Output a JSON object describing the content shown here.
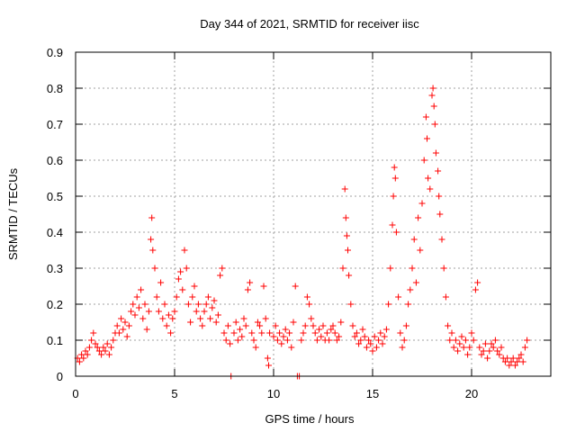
{
  "chart_data": {
    "type": "scatter",
    "title": "Day 344 of 2021, SRMTID for receiver iisc",
    "xlabel": "GPS time / hours",
    "ylabel": "SRMTID / TECUs",
    "xlim": [
      0,
      24
    ],
    "ylim": [
      0,
      0.9
    ],
    "xticks": [
      0,
      5,
      10,
      15,
      20
    ],
    "yticks": [
      0,
      0.1,
      0.2,
      0.3,
      0.4,
      0.5,
      0.6,
      0.7,
      0.8,
      0.9
    ],
    "xtick_labels": [
      "0",
      "5",
      "10",
      "15",
      "20"
    ],
    "ytick_labels": [
      "0",
      "0.1",
      "0.2",
      "0.3",
      "0.4",
      "0.5",
      "0.6",
      "0.7",
      "0.8",
      "0.9"
    ],
    "grid": true,
    "marker": "+",
    "series": [
      {
        "name": "SRMTID",
        "color": "#ff0000",
        "points": [
          [
            0.1,
            0.05
          ],
          [
            0.2,
            0.04
          ],
          [
            0.3,
            0.06
          ],
          [
            0.4,
            0.05
          ],
          [
            0.5,
            0.07
          ],
          [
            0.6,
            0.06
          ],
          [
            0.7,
            0.08
          ],
          [
            0.8,
            0.1
          ],
          [
            0.9,
            0.12
          ],
          [
            1.0,
            0.09
          ],
          [
            1.1,
            0.08
          ],
          [
            1.2,
            0.07
          ],
          [
            1.3,
            0.06
          ],
          [
            1.4,
            0.08
          ],
          [
            1.5,
            0.07
          ],
          [
            1.6,
            0.09
          ],
          [
            1.7,
            0.06
          ],
          [
            1.8,
            0.08
          ],
          [
            1.9,
            0.1
          ],
          [
            2.0,
            0.12
          ],
          [
            2.1,
            0.14
          ],
          [
            2.2,
            0.12
          ],
          [
            2.3,
            0.16
          ],
          [
            2.4,
            0.13
          ],
          [
            2.5,
            0.15
          ],
          [
            2.6,
            0.11
          ],
          [
            2.7,
            0.14
          ],
          [
            2.8,
            0.18
          ],
          [
            2.9,
            0.2
          ],
          [
            3.0,
            0.17
          ],
          [
            3.1,
            0.22
          ],
          [
            3.2,
            0.19
          ],
          [
            3.3,
            0.24
          ],
          [
            3.4,
            0.16
          ],
          [
            3.5,
            0.2
          ],
          [
            3.6,
            0.13
          ],
          [
            3.7,
            0.18
          ],
          [
            3.8,
            0.38
          ],
          [
            3.85,
            0.44
          ],
          [
            3.9,
            0.35
          ],
          [
            4.0,
            0.3
          ],
          [
            4.1,
            0.22
          ],
          [
            4.2,
            0.18
          ],
          [
            4.3,
            0.26
          ],
          [
            4.4,
            0.16
          ],
          [
            4.5,
            0.2
          ],
          [
            4.6,
            0.14
          ],
          [
            4.7,
            0.17
          ],
          [
            4.8,
            0.12
          ],
          [
            4.9,
            0.16
          ],
          [
            5.0,
            0.18
          ],
          [
            5.1,
            0.22
          ],
          [
            5.2,
            0.27
          ],
          [
            5.3,
            0.29
          ],
          [
            5.4,
            0.24
          ],
          [
            5.5,
            0.35
          ],
          [
            5.6,
            0.3
          ],
          [
            5.7,
            0.2
          ],
          [
            5.8,
            0.15
          ],
          [
            5.9,
            0.22
          ],
          [
            6.0,
            0.25
          ],
          [
            6.1,
            0.18
          ],
          [
            6.2,
            0.2
          ],
          [
            6.3,
            0.16
          ],
          [
            6.4,
            0.14
          ],
          [
            6.5,
            0.18
          ],
          [
            6.6,
            0.2
          ],
          [
            6.7,
            0.22
          ],
          [
            6.8,
            0.16
          ],
          [
            6.9,
            0.19
          ],
          [
            7.0,
            0.21
          ],
          [
            7.1,
            0.15
          ],
          [
            7.2,
            0.17
          ],
          [
            7.3,
            0.28
          ],
          [
            7.4,
            0.3
          ],
          [
            7.5,
            0.12
          ],
          [
            7.6,
            0.1
          ],
          [
            7.7,
            0.14
          ],
          [
            7.8,
            0.09
          ],
          [
            7.85,
            0.0
          ],
          [
            8.0,
            0.12
          ],
          [
            8.1,
            0.15
          ],
          [
            8.2,
            0.1
          ],
          [
            8.3,
            0.13
          ],
          [
            8.4,
            0.11
          ],
          [
            8.5,
            0.16
          ],
          [
            8.6,
            0.14
          ],
          [
            8.7,
            0.24
          ],
          [
            8.8,
            0.26
          ],
          [
            8.9,
            0.12
          ],
          [
            9.0,
            0.1
          ],
          [
            9.1,
            0.08
          ],
          [
            9.2,
            0.15
          ],
          [
            9.3,
            0.14
          ],
          [
            9.4,
            0.12
          ],
          [
            9.5,
            0.25
          ],
          [
            9.6,
            0.16
          ],
          [
            9.7,
            0.05
          ],
          [
            9.75,
            0.03
          ],
          [
            9.8,
            0.12
          ],
          [
            10.0,
            0.11
          ],
          [
            10.1,
            0.14
          ],
          [
            10.2,
            0.1
          ],
          [
            10.3,
            0.12
          ],
          [
            10.4,
            0.09
          ],
          [
            10.5,
            0.11
          ],
          [
            10.6,
            0.13
          ],
          [
            10.7,
            0.1
          ],
          [
            10.8,
            0.12
          ],
          [
            10.9,
            0.08
          ],
          [
            11.0,
            0.15
          ],
          [
            11.1,
            0.25
          ],
          [
            11.2,
            0.0
          ],
          [
            11.3,
            0.0
          ],
          [
            11.4,
            0.1
          ],
          [
            11.5,
            0.12
          ],
          [
            11.6,
            0.14
          ],
          [
            11.7,
            0.22
          ],
          [
            11.8,
            0.2
          ],
          [
            11.9,
            0.16
          ],
          [
            12.0,
            0.14
          ],
          [
            12.1,
            0.12
          ],
          [
            12.2,
            0.1
          ],
          [
            12.3,
            0.13
          ],
          [
            12.4,
            0.11
          ],
          [
            12.5,
            0.14
          ],
          [
            12.6,
            0.1
          ],
          [
            12.7,
            0.12
          ],
          [
            12.8,
            0.1
          ],
          [
            12.9,
            0.13
          ],
          [
            13.0,
            0.14
          ],
          [
            13.1,
            0.12
          ],
          [
            13.2,
            0.1
          ],
          [
            13.3,
            0.11
          ],
          [
            13.4,
            0.15
          ],
          [
            13.5,
            0.3
          ],
          [
            13.6,
            0.52
          ],
          [
            13.65,
            0.44
          ],
          [
            13.7,
            0.39
          ],
          [
            13.75,
            0.35
          ],
          [
            13.8,
            0.28
          ],
          [
            13.9,
            0.2
          ],
          [
            14.0,
            0.14
          ],
          [
            14.1,
            0.11
          ],
          [
            14.2,
            0.12
          ],
          [
            14.3,
            0.09
          ],
          [
            14.4,
            0.1
          ],
          [
            14.5,
            0.13
          ],
          [
            14.6,
            0.11
          ],
          [
            14.7,
            0.08
          ],
          [
            14.8,
            0.1
          ],
          [
            14.9,
            0.09
          ],
          [
            15.0,
            0.07
          ],
          [
            15.1,
            0.11
          ],
          [
            15.2,
            0.08
          ],
          [
            15.3,
            0.1
          ],
          [
            15.4,
            0.12
          ],
          [
            15.5,
            0.09
          ],
          [
            15.6,
            0.11
          ],
          [
            15.7,
            0.13
          ],
          [
            15.8,
            0.2
          ],
          [
            15.9,
            0.3
          ],
          [
            16.0,
            0.42
          ],
          [
            16.05,
            0.5
          ],
          [
            16.1,
            0.58
          ],
          [
            16.15,
            0.55
          ],
          [
            16.2,
            0.4
          ],
          [
            16.3,
            0.22
          ],
          [
            16.4,
            0.12
          ],
          [
            16.5,
            0.08
          ],
          [
            16.6,
            0.1
          ],
          [
            16.7,
            0.14
          ],
          [
            16.8,
            0.2
          ],
          [
            16.9,
            0.24
          ],
          [
            17.0,
            0.3
          ],
          [
            17.1,
            0.38
          ],
          [
            17.2,
            0.26
          ],
          [
            17.3,
            0.44
          ],
          [
            17.4,
            0.35
          ],
          [
            17.5,
            0.48
          ],
          [
            17.6,
            0.6
          ],
          [
            17.7,
            0.72
          ],
          [
            17.75,
            0.66
          ],
          [
            17.8,
            0.55
          ],
          [
            17.9,
            0.52
          ],
          [
            18.0,
            0.78
          ],
          [
            18.05,
            0.8
          ],
          [
            18.1,
            0.75
          ],
          [
            18.15,
            0.7
          ],
          [
            18.2,
            0.62
          ],
          [
            18.3,
            0.57
          ],
          [
            18.35,
            0.5
          ],
          [
            18.4,
            0.45
          ],
          [
            18.5,
            0.38
          ],
          [
            18.6,
            0.3
          ],
          [
            18.7,
            0.22
          ],
          [
            18.8,
            0.14
          ],
          [
            18.9,
            0.1
          ],
          [
            19.0,
            0.12
          ],
          [
            19.1,
            0.08
          ],
          [
            19.2,
            0.1
          ],
          [
            19.3,
            0.07
          ],
          [
            19.4,
            0.09
          ],
          [
            19.5,
            0.11
          ],
          [
            19.6,
            0.08
          ],
          [
            19.7,
            0.1
          ],
          [
            19.8,
            0.06
          ],
          [
            19.9,
            0.08
          ],
          [
            20.0,
            0.12
          ],
          [
            20.1,
            0.1
          ],
          [
            20.2,
            0.24
          ],
          [
            20.3,
            0.26
          ],
          [
            20.4,
            0.08
          ],
          [
            20.5,
            0.06
          ],
          [
            20.6,
            0.07
          ],
          [
            20.7,
            0.09
          ],
          [
            20.8,
            0.05
          ],
          [
            20.9,
            0.07
          ],
          [
            21.0,
            0.09
          ],
          [
            21.1,
            0.08
          ],
          [
            21.2,
            0.1
          ],
          [
            21.3,
            0.07
          ],
          [
            21.4,
            0.06
          ],
          [
            21.5,
            0.08
          ],
          [
            21.6,
            0.05
          ],
          [
            21.7,
            0.04
          ],
          [
            21.8,
            0.05
          ],
          [
            21.9,
            0.03
          ],
          [
            22.0,
            0.04
          ],
          [
            22.1,
            0.05
          ],
          [
            22.2,
            0.03
          ],
          [
            22.3,
            0.04
          ],
          [
            22.4,
            0.05
          ],
          [
            22.5,
            0.06
          ],
          [
            22.6,
            0.04
          ],
          [
            22.7,
            0.08
          ],
          [
            22.8,
            0.1
          ]
        ]
      }
    ]
  }
}
